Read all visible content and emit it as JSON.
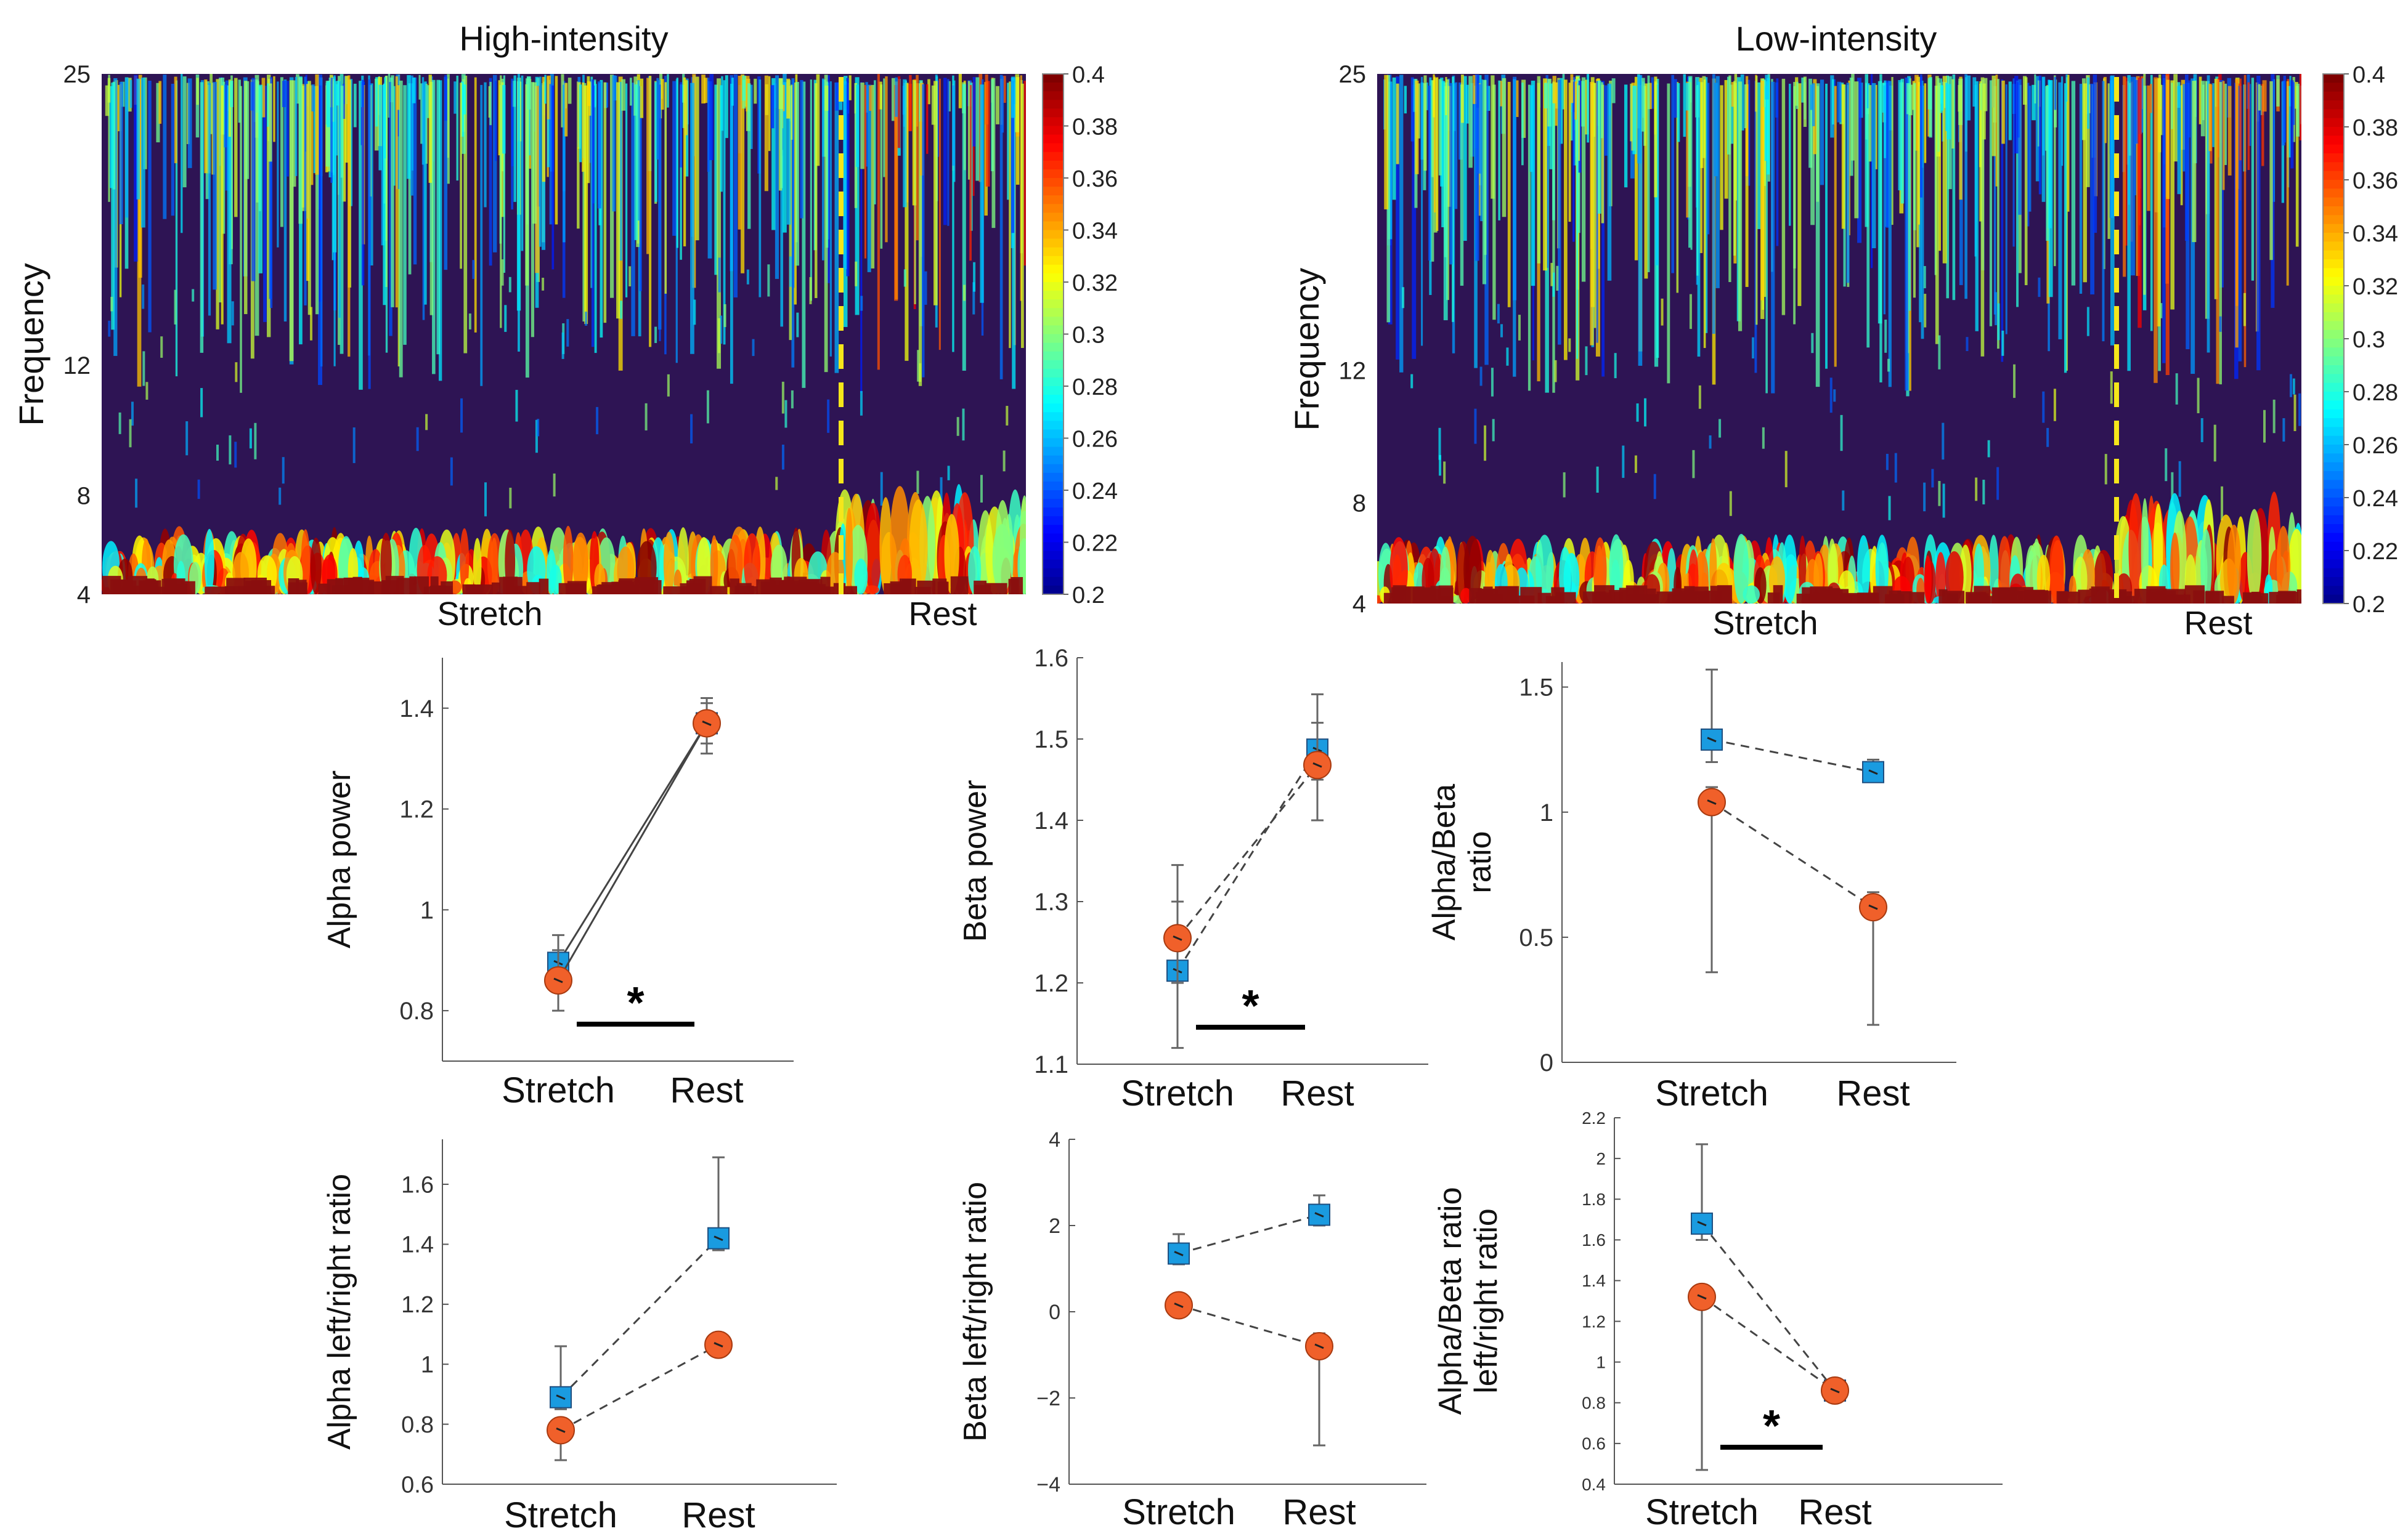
{
  "colors": {
    "blue": "#1a9be0",
    "orange": "#f0602a",
    "spec_bg": "#2e1454",
    "dashed_marker": "#f5e61a",
    "axis": "#555555",
    "errbar": "#666666",
    "sigbar": "#000000"
  },
  "chart_data": [
    {
      "id": "spec-high",
      "type": "heatmap",
      "title": "High-intensity",
      "ylabel": "Frequency",
      "yticks": [
        "25",
        "12",
        "8",
        "4"
      ],
      "xlabels": [
        "Stretch",
        "Rest"
      ],
      "colorbar": {
        "min": 0.2,
        "max": 0.4,
        "ticks": [
          "0.4",
          "0.38",
          "0.36",
          "0.34",
          "0.32",
          "0.3",
          "0.28",
          "0.26",
          "0.24",
          "0.22",
          "0.2"
        ]
      },
      "marker_fraction": 0.8
    },
    {
      "id": "spec-low",
      "type": "heatmap",
      "title": "Low-intensity",
      "ylabel": "Frequency",
      "yticks": [
        "25",
        "12",
        "8",
        "4"
      ],
      "xlabels": [
        "Stretch",
        "Rest"
      ],
      "colorbar": {
        "min": 0.2,
        "max": 0.4,
        "ticks": [
          "0.4",
          "0.38",
          "0.36",
          "0.34",
          "0.32",
          "0.3",
          "0.28",
          "0.26",
          "0.24",
          "0.22",
          "0.2"
        ]
      },
      "marker_fraction": 0.8
    },
    {
      "id": "alpha-power",
      "type": "line",
      "ylabel": [
        "Alpha power"
      ],
      "categories": [
        "Stretch",
        "Rest"
      ],
      "ylim": [
        0.7,
        1.5
      ],
      "yticks": [
        {
          "v": 0.8,
          "t": "0.8"
        },
        {
          "v": 1.0,
          "t": "1"
        },
        {
          "v": 1.2,
          "t": "1.2"
        },
        {
          "v": 1.4,
          "t": "1.4"
        }
      ],
      "line_style": "solid",
      "series": [
        {
          "name": "High-intensity",
          "marker": "square",
          "color": "blue",
          "values": [
            0.895,
            1.37
          ],
          "err_lo": [
            0.87,
            1.33
          ],
          "err_hi": [
            0.95,
            1.42
          ]
        },
        {
          "name": "Low-intensity",
          "marker": "circle",
          "color": "orange",
          "values": [
            0.86,
            1.37
          ],
          "err_lo": [
            0.8,
            1.31
          ],
          "err_hi": [
            0.92,
            1.41
          ]
        }
      ],
      "significance": "*"
    },
    {
      "id": "beta-power",
      "type": "line",
      "ylabel": [
        "Beta power"
      ],
      "categories": [
        "Stretch",
        "Rest"
      ],
      "ylim": [
        1.1,
        1.6
      ],
      "yticks": [
        {
          "v": 1.1,
          "t": "1.1"
        },
        {
          "v": 1.2,
          "t": "1.2"
        },
        {
          "v": 1.3,
          "t": "1.3"
        },
        {
          "v": 1.4,
          "t": "1.4"
        },
        {
          "v": 1.5,
          "t": "1.5"
        },
        {
          "v": 1.6,
          "t": "1.6"
        }
      ],
      "line_style": "dashed",
      "series": [
        {
          "name": "High-intensity",
          "marker": "square",
          "color": "blue",
          "values": [
            1.215,
            1.487
          ],
          "err_lo": [
            1.12,
            1.45
          ],
          "err_hi": [
            1.3,
            1.555
          ]
        },
        {
          "name": "Low-intensity",
          "marker": "circle",
          "color": "orange",
          "values": [
            1.255,
            1.468
          ],
          "err_lo": [
            1.2,
            1.4
          ],
          "err_hi": [
            1.345,
            1.52
          ]
        }
      ],
      "significance": "*"
    },
    {
      "id": "alpha-beta-ratio",
      "type": "line",
      "ylabel": [
        "Alpha/Beta",
        "ratio"
      ],
      "categories": [
        "Stretch",
        "Rest"
      ],
      "ylim": [
        0,
        1.6
      ],
      "yticks": [
        {
          "v": 0,
          "t": "0"
        },
        {
          "v": 0.5,
          "t": "0.5"
        },
        {
          "v": 1.0,
          "t": "1"
        },
        {
          "v": 1.5,
          "t": "1.5"
        }
      ],
      "line_style": "dashed",
      "series": [
        {
          "name": "High-intensity",
          "marker": "square",
          "color": "blue",
          "values": [
            1.29,
            1.16
          ],
          "err_lo": [
            1.2,
            1.12
          ],
          "err_hi": [
            1.57,
            1.21
          ]
        },
        {
          "name": "Low-intensity",
          "marker": "circle",
          "color": "orange",
          "values": [
            1.04,
            0.62
          ],
          "err_lo": [
            0.36,
            0.15
          ],
          "err_hi": [
            1.1,
            0.68
          ]
        }
      ],
      "significance": ""
    },
    {
      "id": "alpha-lr-ratio",
      "type": "line",
      "ylabel": [
        "Alpha left/right ratio"
      ],
      "categories": [
        "Stretch",
        "Rest"
      ],
      "ylim": [
        0.6,
        1.75
      ],
      "yticks": [
        {
          "v": 0.6,
          "t": "0.6"
        },
        {
          "v": 0.8,
          "t": "0.8"
        },
        {
          "v": 1.0,
          "t": "1"
        },
        {
          "v": 1.2,
          "t": "1.2"
        },
        {
          "v": 1.4,
          "t": "1.4"
        },
        {
          "v": 1.6,
          "t": "1.6"
        }
      ],
      "line_style": "dashed",
      "series": [
        {
          "name": "High-intensity",
          "marker": "square",
          "color": "blue",
          "values": [
            0.89,
            1.42
          ],
          "err_lo": [
            0.85,
            1.38
          ],
          "err_hi": [
            1.06,
            1.69
          ]
        },
        {
          "name": "Low-intensity",
          "marker": "circle",
          "color": "orange",
          "values": [
            0.78,
            1.065
          ],
          "err_lo": [
            0.68,
            1.03
          ],
          "err_hi": [
            0.82,
            1.1
          ]
        }
      ],
      "significance": ""
    },
    {
      "id": "beta-lr-ratio",
      "type": "line",
      "ylabel": [
        "Beta left/right ratio"
      ],
      "categories": [
        "Stretch",
        "Rest"
      ],
      "ylim": [
        -4,
        4
      ],
      "yticks": [
        {
          "v": -4,
          "t": "−4"
        },
        {
          "v": -2,
          "t": "−2"
        },
        {
          "v": 0,
          "t": "0"
        },
        {
          "v": 2,
          "t": "2"
        },
        {
          "v": 4,
          "t": "4"
        }
      ],
      "line_style": "dashed",
      "series": [
        {
          "name": "High-intensity",
          "marker": "square",
          "color": "blue",
          "values": [
            1.35,
            2.25
          ],
          "err_lo": [
            1.1,
            2.0
          ],
          "err_hi": [
            1.8,
            2.7
          ]
        },
        {
          "name": "Low-intensity",
          "marker": "circle",
          "color": "orange",
          "values": [
            0.15,
            -0.8
          ],
          "err_lo": [
            -0.1,
            -3.1
          ],
          "err_hi": [
            0.4,
            -0.5
          ]
        }
      ],
      "significance": ""
    },
    {
      "id": "ab-lr-ratio",
      "type": "line",
      "ylabel": [
        "Alpha/Beta ratio",
        "left/right ratio"
      ],
      "categories": [
        "Stretch",
        "Rest"
      ],
      "ylim": [
        0.4,
        2.2
      ],
      "yticks": [
        {
          "v": 0.4,
          "t": "0.4"
        },
        {
          "v": 0.6,
          "t": "0.6"
        },
        {
          "v": 0.8,
          "t": "0.8"
        },
        {
          "v": 1.0,
          "t": "1"
        },
        {
          "v": 1.2,
          "t": "1.2"
        },
        {
          "v": 1.4,
          "t": "1.4"
        },
        {
          "v": 1.6,
          "t": "1.6"
        },
        {
          "v": 1.8,
          "t": "1.8"
        },
        {
          "v": 2.0,
          "t": "2"
        },
        {
          "v": 2.2,
          "t": "2.2"
        }
      ],
      "line_style": "dashed",
      "series": [
        {
          "name": "High-intensity",
          "marker": "square",
          "color": "blue",
          "values": [
            1.68,
            0.86
          ],
          "err_lo": [
            1.6,
            0.82
          ],
          "err_hi": [
            2.07,
            0.9
          ]
        },
        {
          "name": "Low-intensity",
          "marker": "circle",
          "color": "orange",
          "values": [
            1.32,
            0.86
          ],
          "err_lo": [
            0.47,
            0.83
          ],
          "err_hi": [
            1.36,
            0.89
          ]
        }
      ],
      "significance": "*"
    }
  ]
}
